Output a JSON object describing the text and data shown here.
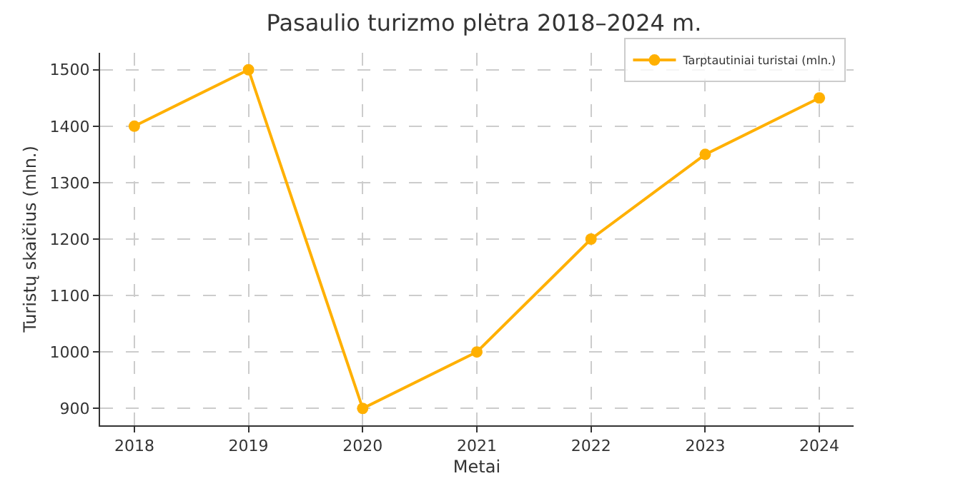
{
  "chart_data": {
    "type": "line",
    "title": "Pasaulio turizmo plėtra 2018–2024 m.",
    "xlabel": "Metai",
    "ylabel": "Turistų skaičius (mln.)",
    "x": [
      2018,
      2019,
      2020,
      2021,
      2022,
      2023,
      2024
    ],
    "series": [
      {
        "name": "Tarptautiniai turistai (mln.)",
        "color": "#ffb000",
        "values": [
          1400,
          1500,
          900,
          1000,
          1200,
          1350,
          1450
        ]
      }
    ],
    "xlim": [
      2017.7,
      2024.3
    ],
    "xticks": [
      2018,
      2019,
      2020,
      2021,
      2022,
      2023,
      2024
    ],
    "ylim": [
      870,
      1530
    ],
    "yticks": [
      900,
      1000,
      1100,
      1200,
      1300,
      1400,
      1500
    ],
    "grid": true,
    "legend": "top right",
    "marker": "circle",
    "line_style": "solid"
  }
}
